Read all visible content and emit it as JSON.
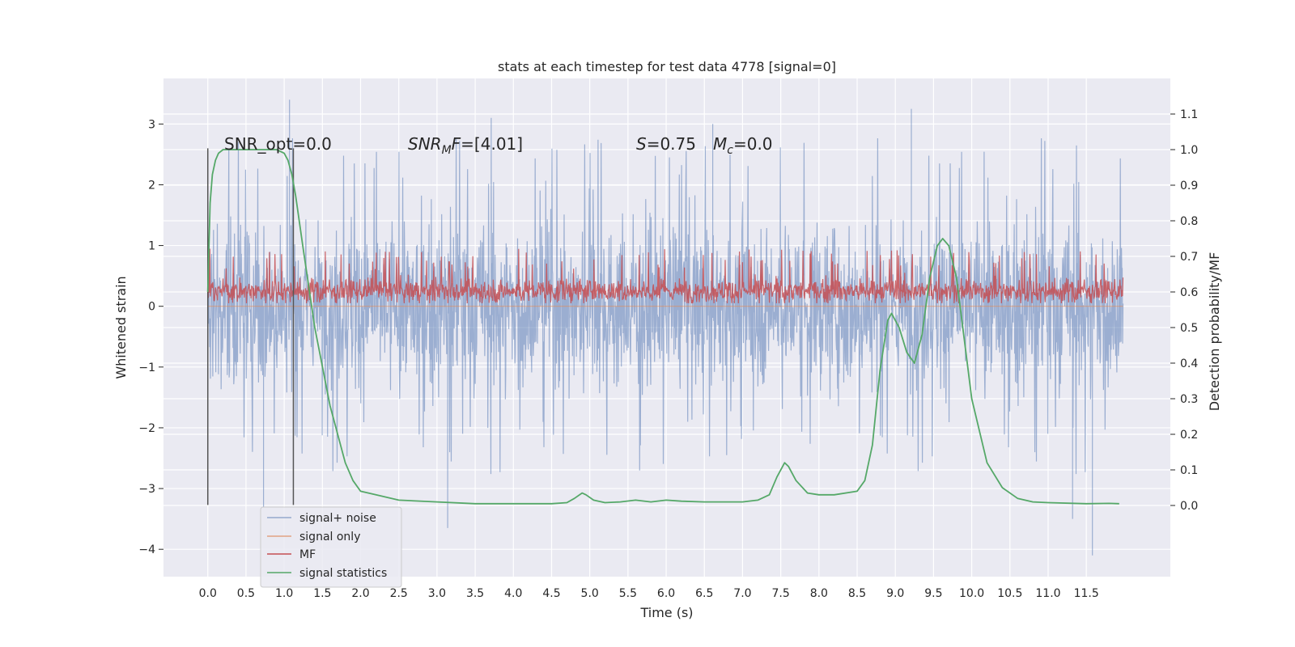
{
  "chart_data": {
    "type": "line",
    "title": "stats at each timestep for test data 4778 [signal=0]",
    "xlabel": "Time (s)",
    "ylabel_left": "Whitened strain",
    "ylabel_right": "Detection probability/MF",
    "xlim": [
      -0.58,
      12.6
    ],
    "ylim_left": [
      -4.45,
      3.75
    ],
    "ylim_right": [
      -0.2,
      1.2
    ],
    "x_ticks": [
      "0.0",
      "0.5",
      "1.0",
      "1.5",
      "2.0",
      "2.5",
      "3.0",
      "3.5",
      "4.0",
      "4.5",
      "5.0",
      "5.5",
      "6.0",
      "6.5",
      "7.0",
      "7.5",
      "8.0",
      "8.5",
      "9.0",
      "9.5",
      "10.0",
      "10.5",
      "11.0",
      "11.5"
    ],
    "y_left_ticks": [
      "−4",
      "−3",
      "−2",
      "−1",
      "0",
      "1",
      "2",
      "3"
    ],
    "y_right_ticks": [
      "0.0",
      "0.1",
      "0.2",
      "0.3",
      "0.4",
      "0.5",
      "0.6",
      "0.7",
      "0.8",
      "0.9",
      "1.0",
      "1.1"
    ],
    "grid": true,
    "legend_position": "lower-left",
    "colors": {
      "signal_noise": "#4c72b0",
      "signal_only": "#dd8452",
      "mf": "#c44e52",
      "statistics": "#55a868",
      "background": "#eaeaf2",
      "window_line": "#555555"
    },
    "annotations": {
      "snr_opt": "SNR_opt=0.0",
      "snr_mf_name": "SNR",
      "snr_mf_sub": "M",
      "snr_mf_rest": "F=[4.01]",
      "s_name": "S",
      "s_val": "=0.75",
      "mc_name": "M",
      "mc_sub": "c",
      "mc_val": "=0.0"
    },
    "window": {
      "start": 0.0,
      "end": 1.12
    },
    "series": [
      {
        "name": "signal+ noise",
        "axis": "left",
        "envelope_description": "noise trace, typical band ±1.5, peaks to 3.4 and -4.1",
        "x_range": [
          0.0,
          11.98
        ],
        "band": [
          -1.5,
          1.45
        ],
        "extremes": [
          {
            "x": 1.07,
            "y": 3.4
          },
          {
            "x": 3.71,
            "y": 3.1
          },
          {
            "x": 6.61,
            "y": 3.0
          },
          {
            "x": 9.21,
            "y": 3.25
          },
          {
            "x": 0.73,
            "y": -3.3
          },
          {
            "x": 3.14,
            "y": -3.65
          },
          {
            "x": 11.32,
            "y": -3.5
          },
          {
            "x": 11.58,
            "y": -4.1
          }
        ]
      },
      {
        "name": "signal only",
        "axis": "left",
        "values_constant": 0.0
      },
      {
        "name": "MF",
        "axis": "left",
        "x_range": [
          0.0,
          11.98
        ],
        "band": [
          0.05,
          0.7
        ],
        "center": 0.25
      },
      {
        "name": "signal statistics",
        "axis": "right",
        "x": [
          0.0,
          0.03,
          0.06,
          0.1,
          0.14,
          0.2,
          0.3,
          0.5,
          0.7,
          0.9,
          1.0,
          1.05,
          1.1,
          1.15,
          1.25,
          1.4,
          1.6,
          1.8,
          1.9,
          2.0,
          2.2,
          2.5,
          3.0,
          3.5,
          4.0,
          4.5,
          4.7,
          4.8,
          4.9,
          4.95,
          5.05,
          5.2,
          5.4,
          5.6,
          5.8,
          6.0,
          6.2,
          6.5,
          7.0,
          7.2,
          7.35,
          7.45,
          7.55,
          7.6,
          7.7,
          7.85,
          8.0,
          8.2,
          8.5,
          8.6,
          8.7,
          8.8,
          8.9,
          8.95,
          9.05,
          9.15,
          9.25,
          9.35,
          9.45,
          9.55,
          9.62,
          9.7,
          9.8,
          9.9,
          10.0,
          10.2,
          10.4,
          10.6,
          10.8,
          11.0,
          11.5,
          11.8,
          11.93
        ],
        "values": [
          0.6,
          0.85,
          0.93,
          0.97,
          0.99,
          1.0,
          1.0,
          1.0,
          1.0,
          1.0,
          0.99,
          0.97,
          0.93,
          0.87,
          0.72,
          0.5,
          0.28,
          0.12,
          0.07,
          0.04,
          0.03,
          0.015,
          0.01,
          0.005,
          0.005,
          0.005,
          0.008,
          0.02,
          0.035,
          0.03,
          0.015,
          0.008,
          0.01,
          0.015,
          0.01,
          0.015,
          0.012,
          0.01,
          0.01,
          0.015,
          0.03,
          0.08,
          0.12,
          0.11,
          0.07,
          0.035,
          0.03,
          0.03,
          0.04,
          0.07,
          0.17,
          0.38,
          0.52,
          0.54,
          0.5,
          0.43,
          0.4,
          0.48,
          0.64,
          0.73,
          0.75,
          0.73,
          0.64,
          0.47,
          0.3,
          0.12,
          0.05,
          0.02,
          0.01,
          0.008,
          0.005,
          0.006,
          0.005
        ]
      }
    ]
  }
}
